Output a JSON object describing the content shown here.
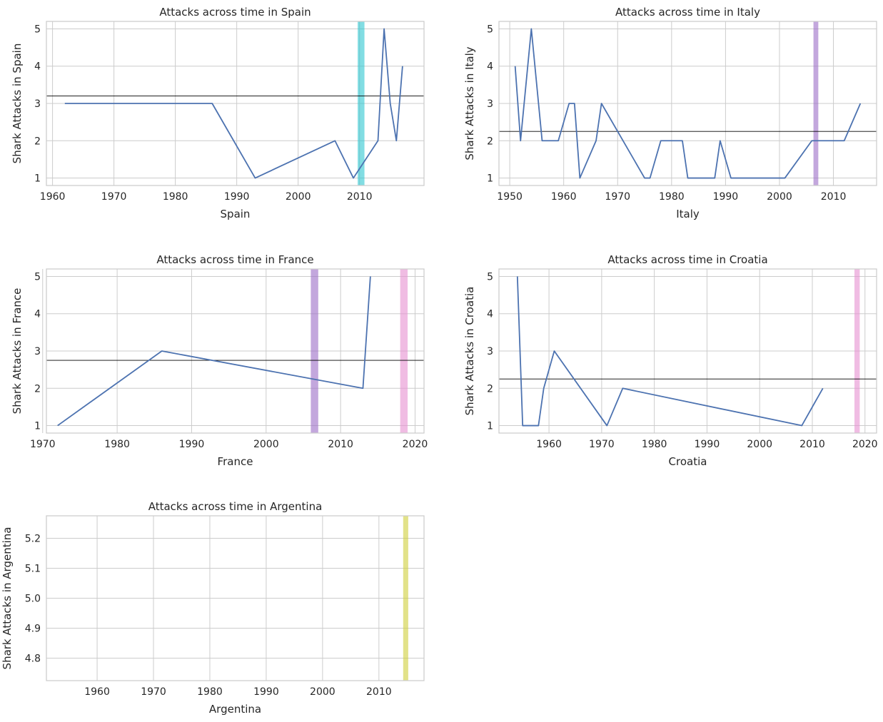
{
  "chart_data": [
    {
      "type": "line",
      "title": "Attacks across time in Spain",
      "xlabel": "Spain",
      "ylabel": "Shark Attacks in Spain",
      "xlim": [
        1959,
        2020.5
      ],
      "ylim": [
        0.8,
        5.2
      ],
      "xticks": [
        1960,
        1970,
        1980,
        1990,
        2000,
        2010
      ],
      "yticks": [
        1,
        2,
        3,
        4,
        5
      ],
      "grid": true,
      "series": [
        {
          "x": [
            1962,
            1986,
            1993,
            2006,
            2009,
            2013,
            2014,
            2015,
            2016,
            2017
          ],
          "y": [
            3,
            3,
            1,
            2,
            1,
            2,
            5,
            3,
            2,
            4
          ],
          "color": "#4c72b0"
        }
      ],
      "hline": {
        "y": 3.2,
        "color": "#000000"
      },
      "bands": [
        {
          "start": 2009.7,
          "end": 2010.8,
          "color": "#2ec7d1"
        }
      ]
    },
    {
      "type": "line",
      "title": "Attacks across time in Italy",
      "xlabel": "Italy",
      "ylabel": "Shark Attacks in Italy",
      "xlim": [
        1948,
        2018
      ],
      "ylim": [
        0.8,
        5.2
      ],
      "xticks": [
        1950,
        1960,
        1970,
        1980,
        1990,
        2000,
        2010
      ],
      "yticks": [
        1,
        2,
        3,
        4,
        5
      ],
      "grid": true,
      "series": [
        {
          "x": [
            1951,
            1952,
            1954,
            1956,
            1959,
            1961,
            1962,
            1963,
            1966,
            1967,
            1975,
            1976,
            1978,
            1982,
            1983,
            1988,
            1989,
            1991,
            2001,
            2006,
            2012,
            2015
          ],
          "y": [
            4,
            2,
            5,
            2,
            2,
            3,
            3,
            1,
            2,
            3,
            1,
            1,
            2,
            2,
            1,
            1,
            2,
            1,
            1,
            2,
            2,
            3
          ],
          "color": "#4c72b0"
        }
      ],
      "hline": {
        "y": 2.25,
        "color": "#000000"
      },
      "bands": [
        {
          "start": 2006.3,
          "end": 2007.2,
          "color": "#9b6cc6"
        }
      ]
    },
    {
      "type": "line",
      "title": "Attacks across time in France",
      "xlabel": "France",
      "ylabel": "Shark Attacks in France",
      "xlim": [
        1970.5,
        2021.2
      ],
      "ylim": [
        0.8,
        5.2
      ],
      "xticks": [
        1970,
        1980,
        1990,
        2000,
        2010,
        2020
      ],
      "yticks": [
        1,
        2,
        3,
        4,
        5
      ],
      "grid": true,
      "series": [
        {
          "x": [
            1972,
            1986,
            2013,
            2014
          ],
          "y": [
            1,
            3,
            2,
            5
          ],
          "color": "#4c72b0"
        }
      ],
      "hline": {
        "y": 2.75,
        "color": "#000000"
      },
      "bands": [
        {
          "start": 2006,
          "end": 2007,
          "color": "#9b6cc6"
        },
        {
          "start": 2018,
          "end": 2019,
          "color": "#e68fd0"
        }
      ]
    },
    {
      "type": "line",
      "title": "Attacks across time in Croatia",
      "xlabel": "Croatia",
      "ylabel": "Shark Attacks in Croatia",
      "xlim": [
        1950.5,
        2022.2
      ],
      "ylim": [
        0.8,
        5.2
      ],
      "xticks": [
        1960,
        1970,
        1980,
        1990,
        2000,
        2010,
        2020
      ],
      "yticks": [
        1,
        2,
        3,
        4,
        5
      ],
      "grid": true,
      "series": [
        {
          "x": [
            1954,
            1955,
            1958,
            1959,
            1961,
            1971,
            1974,
            2008,
            2012
          ],
          "y": [
            5,
            1,
            1,
            2,
            3,
            1,
            2,
            1,
            2
          ],
          "color": "#4c72b0"
        }
      ],
      "hline": {
        "y": 2.25,
        "color": "#000000"
      },
      "bands": [
        {
          "start": 2018,
          "end": 2019,
          "color": "#e68fd0"
        }
      ]
    },
    {
      "type": "line",
      "title": "Attacks across time in Argentina",
      "xlabel": "Argentina",
      "ylabel": "Shark Attacks in Argentina",
      "xlim": [
        1951,
        2018
      ],
      "ylim": [
        4.725,
        5.275
      ],
      "xticks": [
        1960,
        1970,
        1980,
        1990,
        2000,
        2010
      ],
      "yticks": [
        4.8,
        4.9,
        5.0,
        5.1,
        5.2
      ],
      "ytick_labels": [
        "4.8",
        "4.9",
        "5.0",
        "5.1",
        "5.2"
      ],
      "grid": true,
      "series": [],
      "bands": [
        {
          "start": 2014.3,
          "end": 2015.2,
          "color": "#cfcf3a"
        }
      ]
    }
  ]
}
